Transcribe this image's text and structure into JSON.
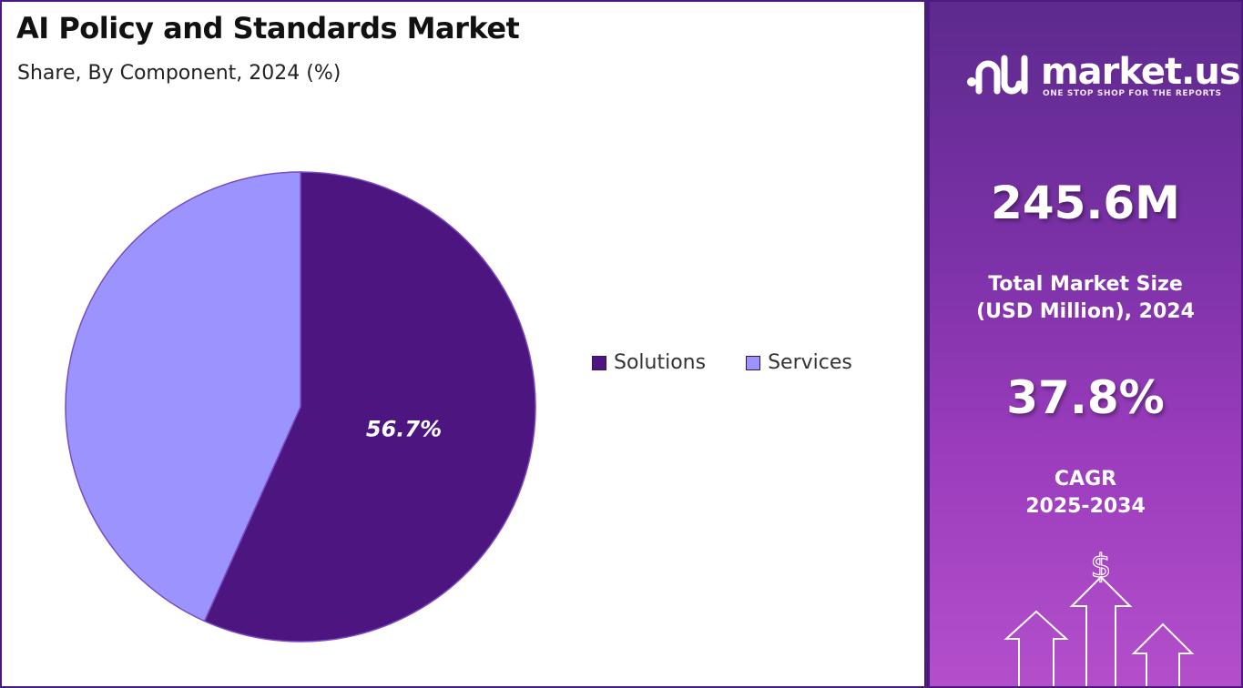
{
  "title": "AI Policy and Standards Market",
  "subtitle": "Share, By Component, 2024 (%)",
  "chart_data": {
    "type": "pie",
    "title": "AI Policy and Standards Market",
    "subtitle": "Share, By Component, 2024 (%)",
    "categories": [
      "Solutions",
      "Services"
    ],
    "values": [
      56.7,
      43.3
    ],
    "data_labels": [
      "56.7%",
      ""
    ],
    "colors": [
      "#4c1580",
      "#9b94ff"
    ],
    "legend_position": "right"
  },
  "side_panel": {
    "brand_name": "market.us",
    "brand_tagline": "ONE STOP SHOP FOR THE REPORTS",
    "market_size_value": "245.6M",
    "market_size_label_line1": "Total Market Size",
    "market_size_label_line2": "(USD Million), 2024",
    "cagr_value": "37.8%",
    "cagr_label_line1": "CAGR",
    "cagr_label_line2": "2025-2034",
    "currency_symbol": "$"
  }
}
